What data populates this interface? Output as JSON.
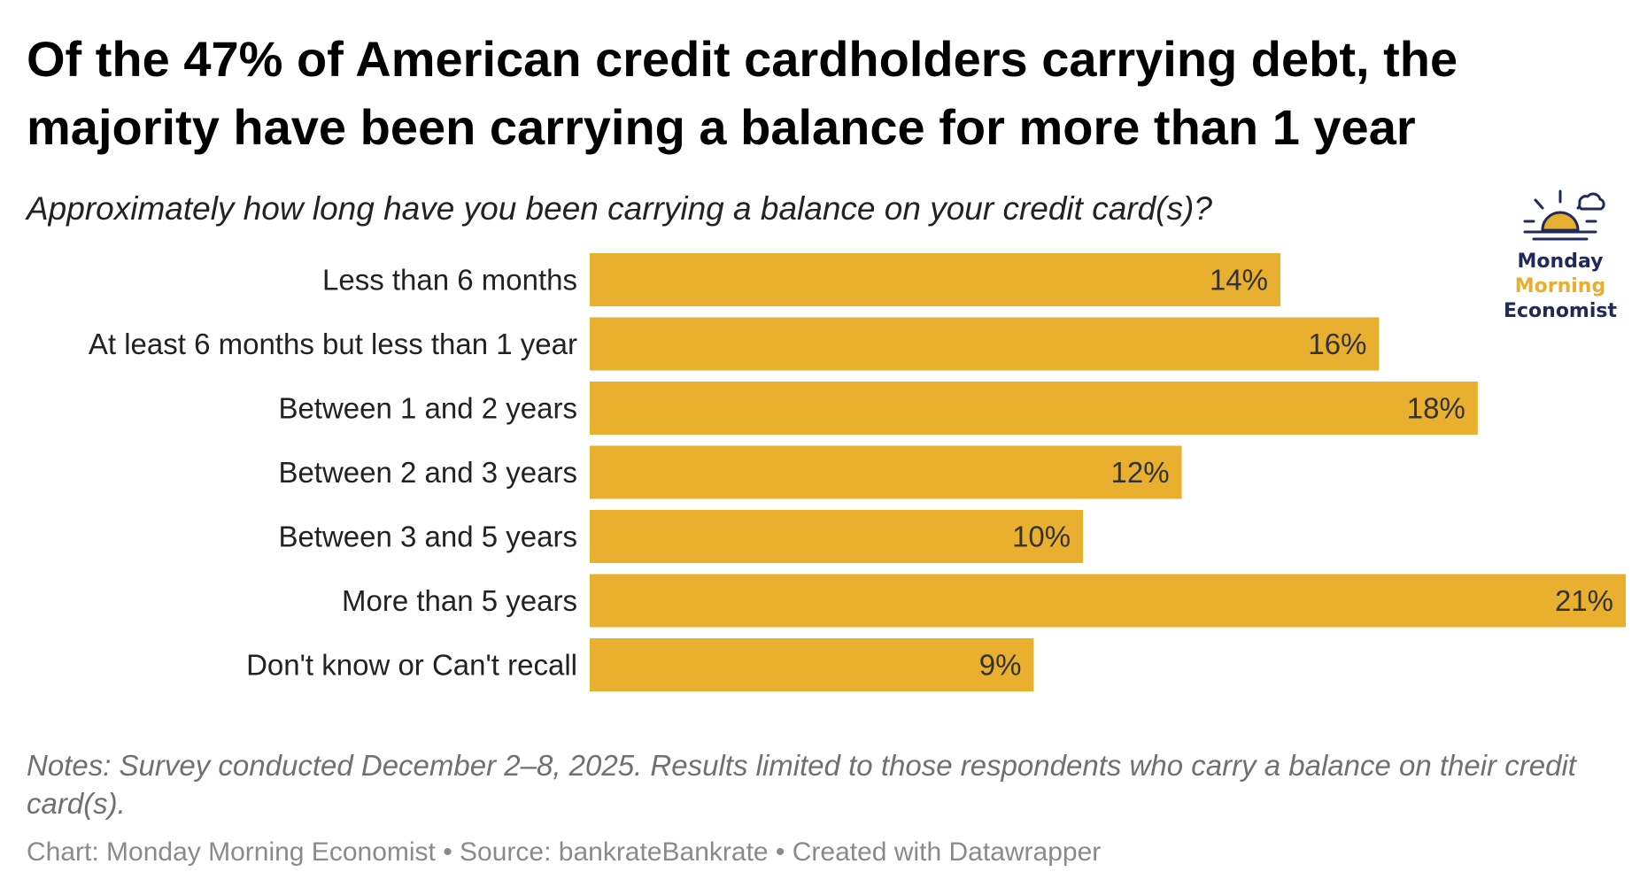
{
  "title": "Of the 47% of American credit cardholders carrying debt, the majority have been carrying a balance for more than 1 year",
  "subtitle": "Approximately how long have you been carrying a balance on your credit card(s)?",
  "logo": {
    "icon": "sun-cloud-icon",
    "line1": "Monday",
    "line2": "Morning",
    "line3": "Economist"
  },
  "chart_data": {
    "type": "bar",
    "orientation": "horizontal",
    "categories": [
      "Less than 6 months",
      "At least 6 months but less than 1 year",
      "Between 1 and 2 years",
      "Between 2 and 3 years",
      "Between 3 and 5 years",
      "More than 5 years",
      "Don't know or Can't recall"
    ],
    "values": [
      14,
      16,
      18,
      12,
      10,
      21,
      9
    ],
    "value_labels": [
      "14%",
      "16%",
      "18%",
      "12%",
      "10%",
      "21%",
      "9%"
    ],
    "unit": "%",
    "xlim": [
      0,
      21
    ],
    "bar_color": "#e9af2f",
    "grid": false,
    "legend": "none"
  },
  "notes": "Notes: Survey conducted December 2–8, 2025. Results limited to those respondents who carry a balance on their credit card(s).",
  "source": "Chart: Monday Morning Economist • Source: bankrateBankrate • Created with Datawrapper"
}
